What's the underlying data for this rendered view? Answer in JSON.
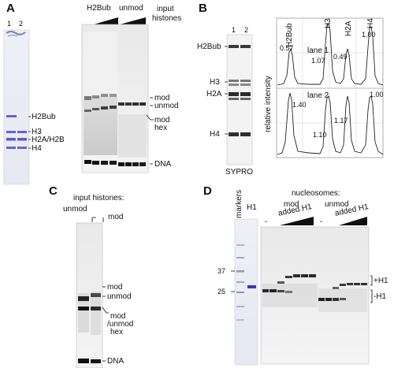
{
  "panels": {
    "A": {
      "letter": "A",
      "coomassie_lanes": [
        "1",
        "2"
      ],
      "band_labels": [
        "H2Bub",
        "H3",
        "H2A/H2B",
        "H4"
      ],
      "gel_groups": [
        "H2Bub",
        "unmod"
      ],
      "input_label_line1": "input",
      "input_label_line2": "histones",
      "right_labels": {
        "mod": "mod",
        "unmod": "unmod",
        "mod_hex_line1": "mod",
        "mod_hex_line2": "hex",
        "dna": "DNA"
      }
    },
    "B": {
      "letter": "B",
      "lanes": [
        "1",
        "2"
      ],
      "band_labels": [
        "H2Bub",
        "H3",
        "H2A",
        "H4"
      ],
      "stain": "SYPRO",
      "peak_headers": [
        "H2Bub",
        "H3",
        "H2A",
        "H4"
      ],
      "ylabel": "relative intensity",
      "lane1": {
        "title": "lane 1",
        "values": [
          "0.57",
          "1.07",
          "0.49",
          "1.00"
        ]
      },
      "lane2": {
        "title": "lane 2",
        "values": [
          "1.40",
          "1.10",
          "1.17",
          "1.00"
        ]
      }
    },
    "C": {
      "letter": "C",
      "title": "input histones:",
      "lane_labels": [
        "unmod",
        "mod"
      ],
      "right_labels": {
        "mod": "mod",
        "unmod": "unmod",
        "hex_line1": "mod",
        "hex_line2": "/unmod",
        "hex_line3": "hex",
        "dna": "DNA"
      }
    },
    "D": {
      "letter": "D",
      "markers_label": "markers",
      "h1_label": "H1",
      "nucleosomes_label": "nucleosomes:",
      "groups": [
        "mod",
        "unmod"
      ],
      "minus": "-",
      "added_h1": "added H1",
      "mw": [
        "37",
        "25"
      ],
      "right_labels": {
        "plus_h1": "+H1",
        "minus_h1": "-H1"
      }
    }
  }
}
